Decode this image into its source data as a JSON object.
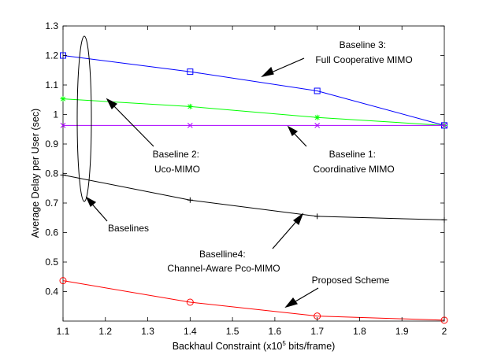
{
  "chart_data": {
    "type": "line",
    "title": "",
    "xlabel": "Backhaul Constraint (x10",
    "xlabel_sup": "5",
    "xlabel_tail": " bits/frame)",
    "ylabel": "Average Delay per User (sec)",
    "xlim": [
      1.1,
      2.0
    ],
    "ylim": [
      0.3,
      1.3
    ],
    "xticks": [
      1.1,
      1.2,
      1.3,
      1.4,
      1.5,
      1.6,
      1.7,
      1.8,
      1.9,
      2.0
    ],
    "xtick_labels": [
      "1.1",
      "1.2",
      "1.3",
      "1.4",
      "1.5",
      "1.6",
      "1.7",
      "1.8",
      "1.9",
      "2"
    ],
    "yticks": [
      0.4,
      0.5,
      0.6,
      0.7,
      0.8,
      0.9,
      1.0,
      1.1,
      1.2,
      1.3
    ],
    "ytick_labels": [
      "0.4",
      "0.5",
      "0.6",
      "0.7",
      "0.8",
      "0.9",
      "1",
      "1.1",
      "1.2",
      "1.3"
    ],
    "grid": false,
    "x": [
      1.1,
      1.4,
      1.7,
      2.0
    ],
    "series": [
      {
        "name": "Baseline 3: Full Cooperative MIMO",
        "color": "#0000ff",
        "marker": "square",
        "values": [
          1.2,
          1.145,
          1.08,
          0.963
        ]
      },
      {
        "name": "Baseline 2: Uco-MIMO",
        "color": "#00ff00",
        "marker": "star",
        "values": [
          1.053,
          1.027,
          0.99,
          0.963
        ]
      },
      {
        "name": "Baseline 1: Coordinative MIMO",
        "color": "#aa00ff",
        "marker": "x",
        "values": [
          0.963,
          0.963,
          0.963,
          0.963
        ]
      },
      {
        "name": "Baselline4: Channel-Aware Pco-MIMO",
        "color": "#000000",
        "marker": "plus",
        "values": [
          0.795,
          0.71,
          0.655,
          0.643
        ]
      },
      {
        "name": "Proposed Scheme",
        "color": "#ff0000",
        "marker": "circle",
        "values": [
          0.437,
          0.364,
          0.317,
          0.303
        ]
      }
    ],
    "annotations": [
      {
        "id": "b3",
        "lines": [
          "Baseline 3:",
          "Full Cooperative MIMO"
        ]
      },
      {
        "id": "b2",
        "lines": [
          "Baseline 2:",
          "Uco-MIMO"
        ]
      },
      {
        "id": "b1",
        "lines": [
          "Baseline 1:",
          "Coordinative MIMO"
        ]
      },
      {
        "id": "base",
        "lines": [
          "Baselines"
        ]
      },
      {
        "id": "b4",
        "lines": [
          "Baselline4:",
          "Channel-Aware Pco-MIMO"
        ]
      },
      {
        "id": "ps",
        "lines": [
          "Proposed Scheme"
        ]
      }
    ]
  }
}
